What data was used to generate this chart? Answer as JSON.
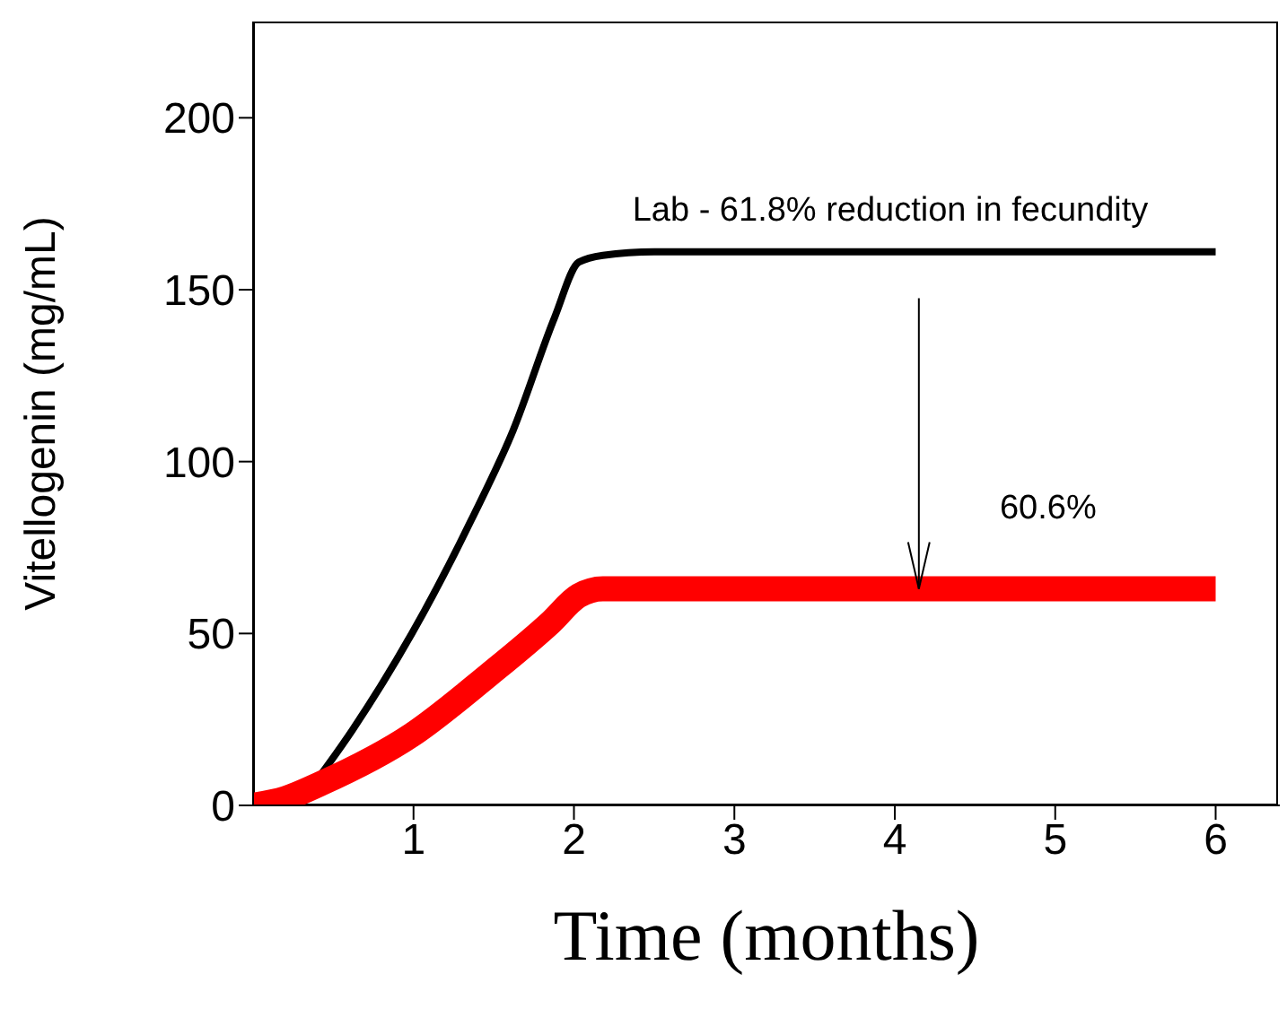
{
  "chart_data": {
    "type": "line",
    "xlabel": "Time (months)",
    "ylabel": "Vitellogenin (mg/mL)",
    "xlim": [
      0,
      6.4
    ],
    "xticks": [
      1,
      2,
      3,
      4,
      5,
      6
    ],
    "ylim": [
      0,
      228
    ],
    "yticks": [
      0,
      50,
      100,
      150,
      200
    ],
    "series": [
      {
        "color": "#000000",
        "x": [
          0.28,
          0.62,
          0.99,
          1.36,
          1.62,
          1.88,
          2.03,
          2.18,
          2.5,
          6
        ],
        "values": [
          0,
          22,
          50,
          83,
          109,
          142,
          158,
          160,
          161,
          161
        ]
      },
      {
        "color": "#ff0000",
        "x": [
          0,
          0.2,
          0.43,
          0.99,
          1.47,
          1.85,
          2.03,
          2.18,
          2.5,
          6
        ],
        "values": [
          0,
          2,
          6.5,
          20.5,
          38,
          53,
          61,
          63,
          63,
          63
        ]
      }
    ],
    "annotations": [
      "Lab - 61.8% reduction in fecundity",
      {
        "text": "60.6%",
        "x": 4.15,
        "y": 63
      }
    ],
    "legend": false,
    "grid": false,
    "marker": "none",
    "line_style": "solid"
  }
}
